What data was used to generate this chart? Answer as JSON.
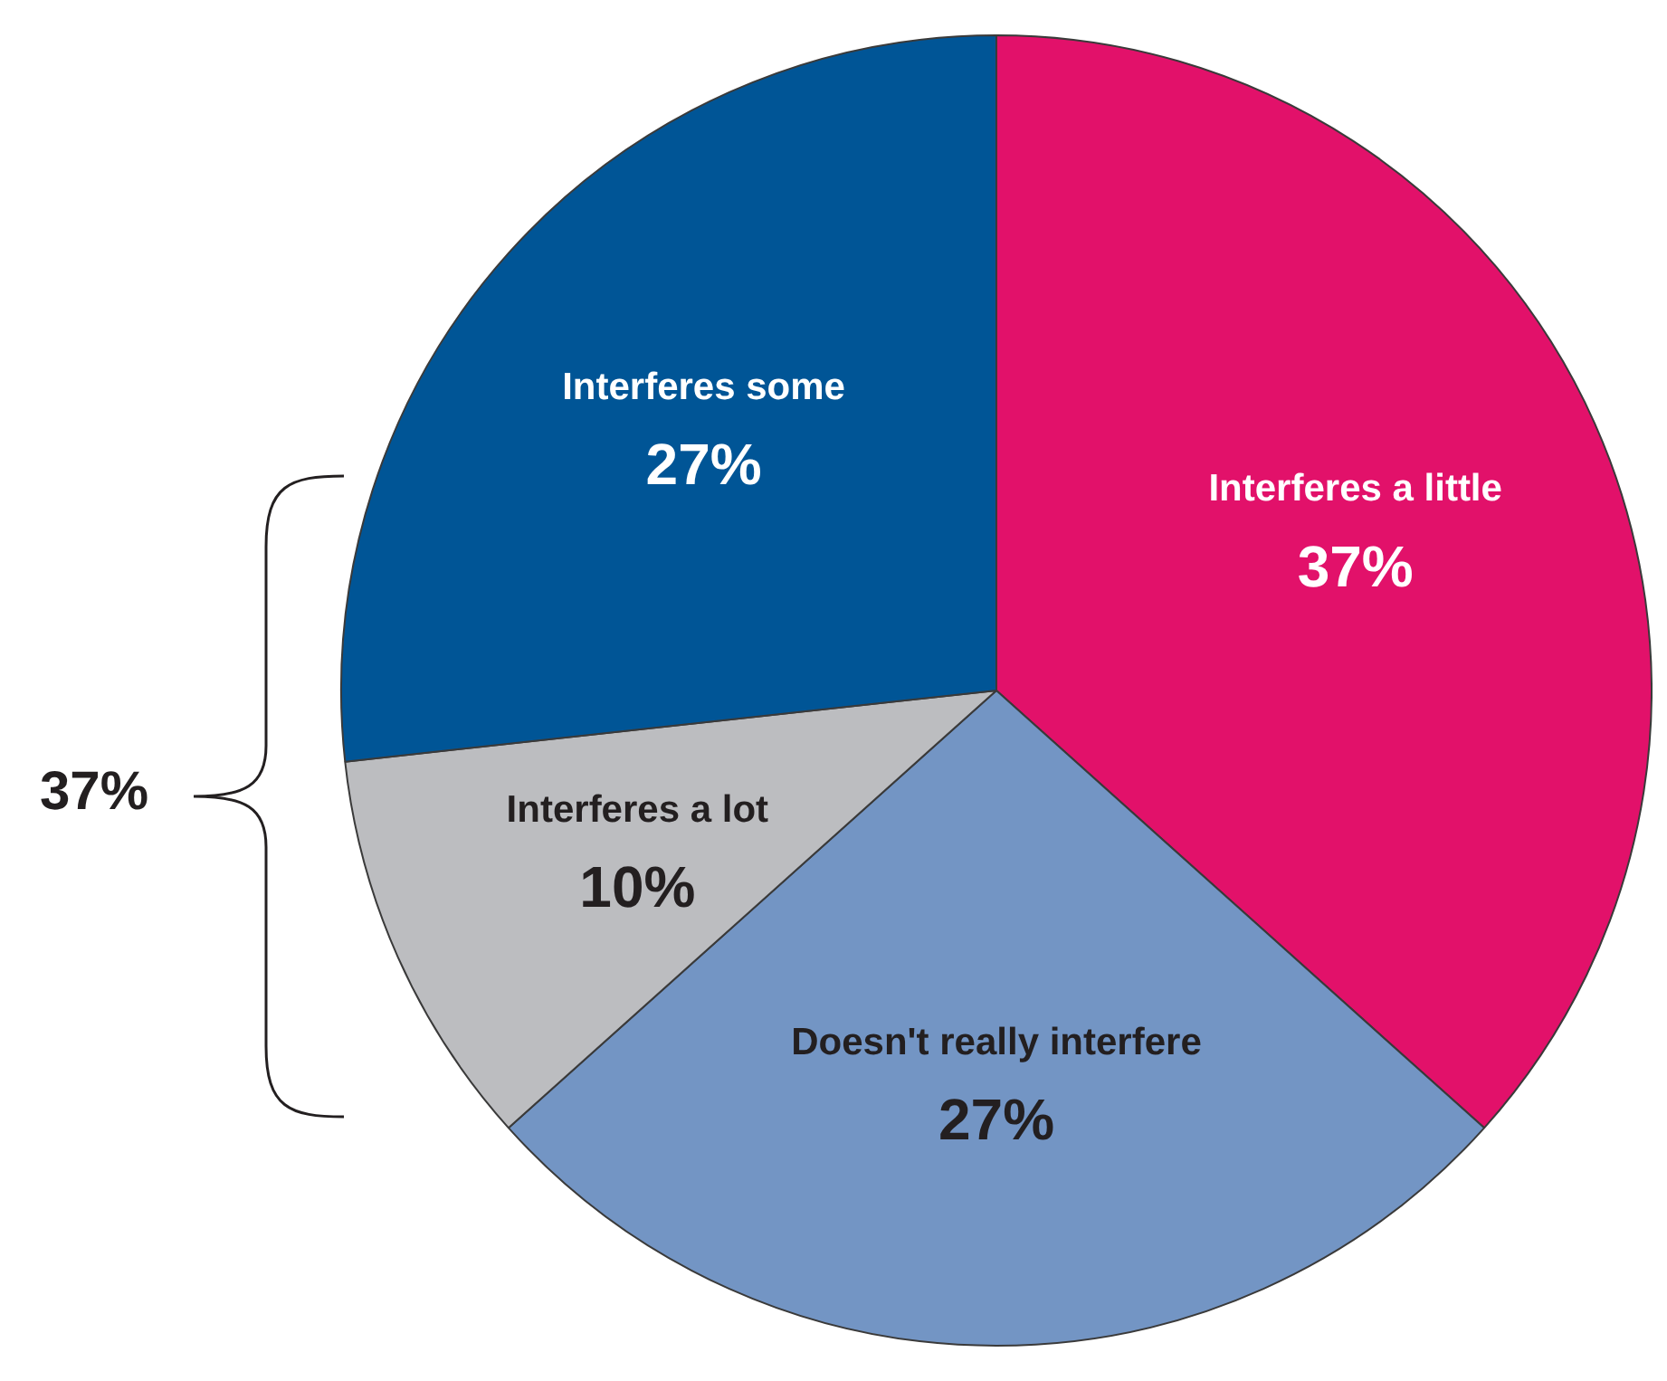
{
  "chart_data": {
    "type": "pie",
    "categories": [
      "Interferes a little",
      "Doesn't really interfere",
      "Interferes a lot",
      "Interferes some"
    ],
    "values": [
      37,
      27,
      10,
      27
    ],
    "value_labels": [
      "37%",
      "27%",
      "10%",
      "27%"
    ],
    "colors": [
      "#e2116a",
      "#7395c4",
      "#bcbdc0",
      "#005596"
    ],
    "annotations": [
      "37%"
    ],
    "legend": false
  }
}
